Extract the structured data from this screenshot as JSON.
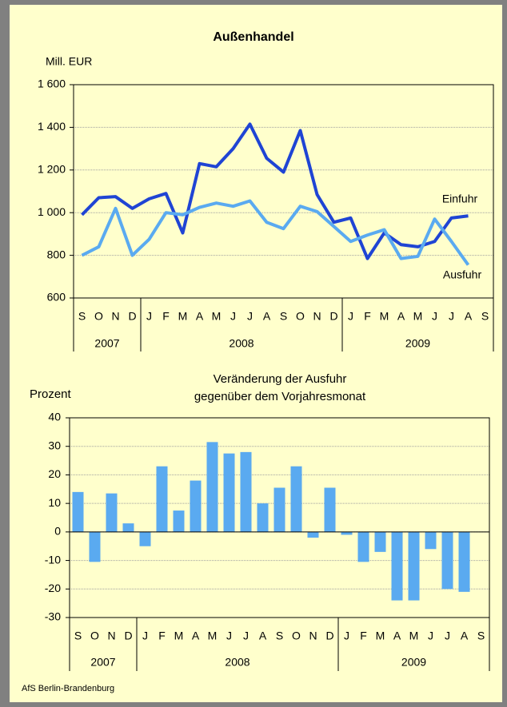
{
  "chart_data": [
    {
      "type": "line",
      "title": "Außenhandel",
      "y_label": "Mill. EUR",
      "categories": [
        "S",
        "O",
        "N",
        "D",
        "J",
        "F",
        "M",
        "A",
        "M",
        "J",
        "J",
        "A",
        "S",
        "O",
        "N",
        "D",
        "J",
        "F",
        "M",
        "A",
        "M",
        "J",
        "J",
        "A",
        "S"
      ],
      "year_groups": [
        {
          "label": "2007",
          "count": 4
        },
        {
          "label": "2008",
          "count": 12
        },
        {
          "label": "2009",
          "count": 9
        }
      ],
      "series": [
        {
          "name": "Einfuhr",
          "color": "#1f44d4",
          "values": [
            990,
            1070,
            1075,
            1020,
            1065,
            1090,
            905,
            1230,
            1215,
            1300,
            1415,
            1255,
            1190,
            1385,
            1085,
            955,
            975,
            785,
            905,
            850,
            840,
            865,
            975,
            985,
            null
          ]
        },
        {
          "name": "Ausfuhr",
          "color": "#5aaaf0",
          "values": [
            800,
            840,
            1020,
            800,
            875,
            1000,
            990,
            1025,
            1045,
            1030,
            1055,
            955,
            925,
            1030,
            1005,
            935,
            865,
            895,
            920,
            785,
            795,
            970,
            865,
            755,
            null
          ]
        }
      ],
      "ylim": [
        600,
        1600
      ],
      "yticks": [
        600,
        800,
        {
          "value": 1000,
          "label": "1 000"
        },
        {
          "value": 1200,
          "label": "1 200"
        },
        {
          "value": 1400,
          "label": "1 400"
        },
        {
          "value": 1600,
          "label": "1 600"
        }
      ],
      "grid": true
    },
    {
      "type": "bar",
      "title": [
        "Veränderung der Ausfuhr",
        "gegenüber dem Vorjahresmonat"
      ],
      "y_label": "Prozent",
      "categories": [
        "S",
        "O",
        "N",
        "D",
        "J",
        "F",
        "M",
        "A",
        "M",
        "J",
        "J",
        "A",
        "S",
        "O",
        "N",
        "D",
        "J",
        "F",
        "M",
        "A",
        "M",
        "J",
        "J",
        "A",
        "S"
      ],
      "year_groups": [
        {
          "label": "2007",
          "count": 4
        },
        {
          "label": "2008",
          "count": 12
        },
        {
          "label": "2009",
          "count": 9
        }
      ],
      "values": [
        14,
        -10.5,
        13.5,
        3,
        -5,
        23,
        7.5,
        18,
        31.5,
        27.5,
        28,
        10,
        15.5,
        23,
        -2,
        15.5,
        -1,
        -10.5,
        -7,
        -24,
        -24,
        -6,
        -20,
        -21,
        null
      ],
      "color": "#5aaaf0",
      "ylim": [
        -30,
        40
      ],
      "yticks": [
        -30,
        -20,
        -10,
        0,
        10,
        20,
        30,
        40
      ],
      "grid": true
    }
  ],
  "footer": "AfS Berlin-Brandenburg"
}
